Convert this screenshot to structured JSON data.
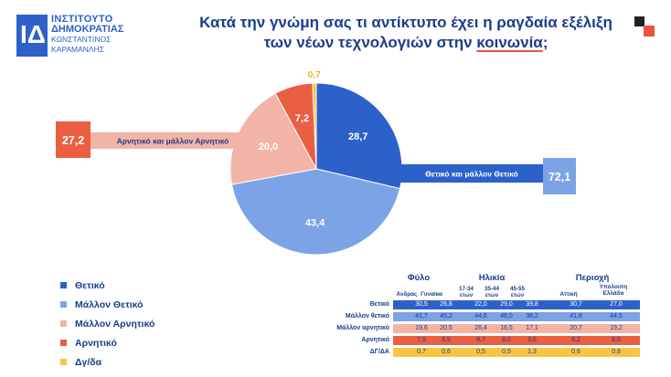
{
  "logo": {
    "line1": "ΙΝΣΤΙΤΟΥΤΟ",
    "line2": "ΔΗΜΟΚΡΑΤΙΑΣ",
    "line3": "ΚΩΝΣΤΑΝΤΙΝΟΣ",
    "line4": "ΚΑΡΑΜΑΝΛΗΣ",
    "mark": "IΔ"
  },
  "title": {
    "line1": "Κατά την γνώμη σας τι αντίκτυπο έχει η ραγδαία εξέλιξη",
    "line2_pre": "των νέων τεχνολογιών στην ",
    "line2_hl": "κοινωνία",
    "line2_post": ";"
  },
  "chart_data": {
    "type": "pie",
    "slices": [
      {
        "label": "Θετικό",
        "value": 28.7,
        "color": "#2c61c9"
      },
      {
        "label": "Μάλλον Θετικό",
        "value": 43.4,
        "color": "#7ba3e6"
      },
      {
        "label": "Μάλλον Αρνητικό",
        "value": 20.0,
        "color": "#f2b4a6"
      },
      {
        "label": "Αρνητικό",
        "value": 7.2,
        "color": "#ea5f42"
      },
      {
        "label": "Δγ/δα",
        "value": 0.7,
        "color": "#f7c542"
      }
    ],
    "callouts": {
      "positive": {
        "label": "Θετικό και μάλλον Θετικό",
        "value": "72,1"
      },
      "negative": {
        "label": "Αρνητικό και μάλλον Αρνητικό",
        "value": "27,2"
      }
    }
  },
  "legend": [
    {
      "label": "Θετικό",
      "color": "#2c61c9"
    },
    {
      "label": "Μάλλον Θετικό",
      "color": "#7ba3e6"
    },
    {
      "label": "Μάλλον Αρνητικό",
      "color": "#f2b4a6"
    },
    {
      "label": "Αρνητικό",
      "color": "#ea5f42"
    },
    {
      "label": "Δγ/δα",
      "color": "#f7c542"
    }
  ],
  "table": {
    "groups": [
      "Φύλο",
      "Ηλικία",
      "Περιοχή"
    ],
    "columns": [
      "Άνδρας",
      "Γυναίκα",
      "17-34 ετών",
      "35-44 ετών",
      "45-55 ετών",
      "Αττική",
      "Υπόλοιπη Ελλάδα"
    ],
    "rows": [
      {
        "label": "Θετικό",
        "color": "#2c61c9",
        "values": [
          "30,5",
          "26,8",
          "22,0",
          "29,0",
          "39,8",
          "30,7",
          "27,0"
        ]
      },
      {
        "label": "Μάλλον θετικό",
        "color": "#7ba3e6",
        "values": [
          "41,7",
          "45,2",
          "44,6",
          "46,0",
          "38,2",
          "41,8",
          "44,5"
        ]
      },
      {
        "label": "Μάλλον αρνητικό",
        "color": "#f2b4a6",
        "values": [
          "19,6",
          "20,5",
          "26,4",
          "16,5",
          "17,1",
          "20,7",
          "19,2"
        ]
      },
      {
        "label": "Αρνητικό",
        "color": "#ea5f42",
        "values": [
          "7,5",
          "6,9",
          "8,7",
          "8,0",
          "3,6",
          "6,2",
          "8,0"
        ]
      },
      {
        "label": "ΔΓ/ΔΑ",
        "color": "#f7c542",
        "values": [
          "0,7",
          "0,6",
          "0,5",
          "0,5",
          "1,3",
          "0,6",
          "0,8"
        ]
      }
    ]
  }
}
